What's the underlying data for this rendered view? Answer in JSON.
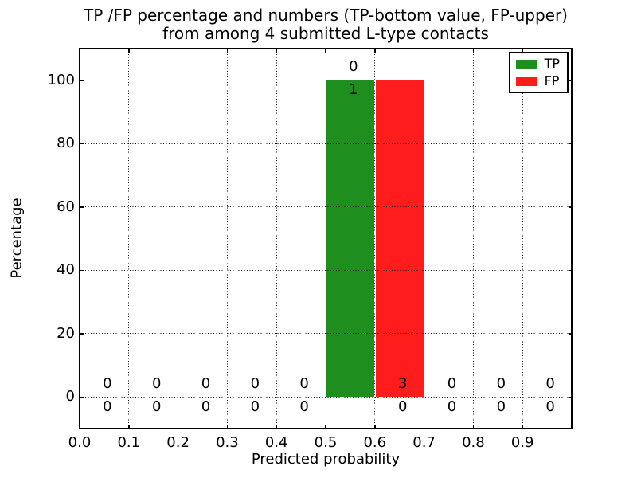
{
  "window": {
    "background": "#ffffff"
  },
  "chart_data": {
    "type": "bar",
    "title_line1": "TP /FP percentage and numbers (TP-bottom value, FP-upper)",
    "title_line2": "from among 4 submitted L-type contacts",
    "xlabel": "Predicted probability",
    "ylabel": "Percentage",
    "xlim": [
      0.0,
      1.0
    ],
    "ylim": [
      -10,
      110
    ],
    "xticks": [
      0.0,
      0.1,
      0.2,
      0.3,
      0.4,
      0.5,
      0.6,
      0.7,
      0.8,
      0.9
    ],
    "xtick_labels": [
      "0.0",
      "0.1",
      "0.2",
      "0.3",
      "0.4",
      "0.5",
      "0.6",
      "0.7",
      "0.8",
      "0.9"
    ],
    "yticks": [
      0,
      20,
      40,
      60,
      80,
      100
    ],
    "ytick_labels": [
      "0",
      "20",
      "40",
      "60",
      "80",
      "100"
    ],
    "grid": {
      "on": true,
      "style": "dotted",
      "color": "#000000"
    },
    "annotation_scheme": "TP-bottom value, FP-upper",
    "total_submitted_contacts": 4,
    "bin_width": 0.1,
    "bins": [
      {
        "x0": 0.0,
        "x1": 0.1,
        "tp_count": 0,
        "fp_count": 0,
        "tp_percent": 0,
        "fp_percent": 0
      },
      {
        "x0": 0.1,
        "x1": 0.2,
        "tp_count": 0,
        "fp_count": 0,
        "tp_percent": 0,
        "fp_percent": 0
      },
      {
        "x0": 0.2,
        "x1": 0.3,
        "tp_count": 0,
        "fp_count": 0,
        "tp_percent": 0,
        "fp_percent": 0
      },
      {
        "x0": 0.3,
        "x1": 0.4,
        "tp_count": 0,
        "fp_count": 0,
        "tp_percent": 0,
        "fp_percent": 0
      },
      {
        "x0": 0.4,
        "x1": 0.5,
        "tp_count": 0,
        "fp_count": 0,
        "tp_percent": 0,
        "fp_percent": 0
      },
      {
        "x0": 0.5,
        "x1": 0.6,
        "tp_count": 1,
        "fp_count": 0,
        "tp_percent": 100,
        "fp_percent": 0
      },
      {
        "x0": 0.6,
        "x1": 0.7,
        "tp_count": 0,
        "fp_count": 3,
        "tp_percent": 0,
        "fp_percent": 100
      },
      {
        "x0": 0.7,
        "x1": 0.8,
        "tp_count": 0,
        "fp_count": 0,
        "tp_percent": 0,
        "fp_percent": 0
      },
      {
        "x0": 0.8,
        "x1": 0.9,
        "tp_count": 0,
        "fp_count": 0,
        "tp_percent": 0,
        "fp_percent": 0
      },
      {
        "x0": 0.9,
        "x1": 1.0,
        "tp_count": 0,
        "fp_count": 0,
        "tp_percent": 0,
        "fp_percent": 0
      }
    ],
    "series": [
      {
        "name": "TP",
        "color": "#1e8e1e",
        "percent_values": [
          0,
          0,
          0,
          0,
          0,
          100,
          0,
          0,
          0,
          0
        ],
        "count_values": [
          0,
          0,
          0,
          0,
          0,
          1,
          0,
          0,
          0,
          0
        ]
      },
      {
        "name": "FP",
        "color": "#ff1c1c",
        "percent_values": [
          0,
          0,
          0,
          0,
          0,
          0,
          100,
          0,
          0,
          0
        ],
        "count_values": [
          0,
          0,
          0,
          0,
          0,
          0,
          3,
          0,
          0,
          0
        ]
      }
    ],
    "legend": {
      "position": "upper right",
      "entries": [
        {
          "label": "TP",
          "color": "#1e8e1e"
        },
        {
          "label": "FP",
          "color": "#ff1c1c"
        }
      ]
    }
  }
}
